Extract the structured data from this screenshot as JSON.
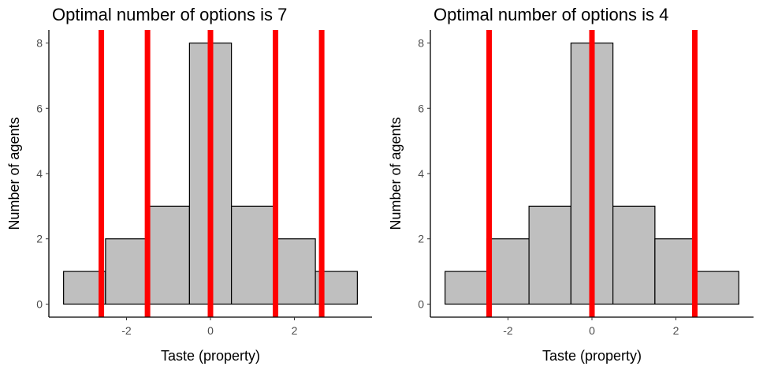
{
  "chart_data": [
    {
      "type": "bar",
      "title": "Optimal number of options is 7",
      "xlabel": "Taste (property)",
      "ylabel": "Number of agents",
      "bins": [
        {
          "x0": -3.5,
          "x1": -2.5,
          "value": 1
        },
        {
          "x0": -2.5,
          "x1": -1.5,
          "value": 2
        },
        {
          "x0": -1.5,
          "x1": -0.5,
          "value": 3
        },
        {
          "x0": -0.5,
          "x1": 0.5,
          "value": 8
        },
        {
          "x0": 0.5,
          "x1": 1.5,
          "value": 3
        },
        {
          "x0": 1.5,
          "x1": 2.5,
          "value": 2
        },
        {
          "x0": 2.5,
          "x1": 3.5,
          "value": 1
        }
      ],
      "vlines": [
        -2.6,
        -1.5,
        0,
        1.55,
        2.65
      ],
      "xlim": [
        -3.85,
        3.85
      ],
      "ylim": [
        -0.4,
        8.4
      ],
      "xticks": [
        -2,
        0,
        2
      ],
      "xtick_labels": [
        "-2",
        "0",
        "2"
      ],
      "yticks": [
        0,
        2,
        4,
        6,
        8
      ],
      "ytick_labels": [
        "0",
        "2",
        "4",
        "6",
        "8"
      ],
      "grid": false,
      "colors": {
        "bar_fill": "#bfbfbf",
        "bar_stroke": "#000000",
        "vline": "#ff0000"
      }
    },
    {
      "type": "bar",
      "title": "Optimal number of options is 4",
      "xlabel": "Taste (property)",
      "ylabel": "Number of agents",
      "bins": [
        {
          "x0": -3.5,
          "x1": -2.5,
          "value": 1
        },
        {
          "x0": -2.5,
          "x1": -1.5,
          "value": 2
        },
        {
          "x0": -1.5,
          "x1": -0.5,
          "value": 3
        },
        {
          "x0": -0.5,
          "x1": 0.5,
          "value": 8
        },
        {
          "x0": 0.5,
          "x1": 1.5,
          "value": 3
        },
        {
          "x0": 1.5,
          "x1": 2.5,
          "value": 2
        },
        {
          "x0": 2.5,
          "x1": 3.5,
          "value": 1
        }
      ],
      "vlines": [
        -2.45,
        0,
        2.45
      ],
      "xlim": [
        -3.85,
        3.85
      ],
      "ylim": [
        -0.4,
        8.4
      ],
      "xticks": [
        -2,
        0,
        2
      ],
      "xtick_labels": [
        "-2",
        "0",
        "2"
      ],
      "yticks": [
        0,
        2,
        4,
        6,
        8
      ],
      "ytick_labels": [
        "0",
        "2",
        "4",
        "6",
        "8"
      ],
      "grid": false,
      "colors": {
        "bar_fill": "#bfbfbf",
        "bar_stroke": "#000000",
        "vline": "#ff0000"
      }
    }
  ]
}
